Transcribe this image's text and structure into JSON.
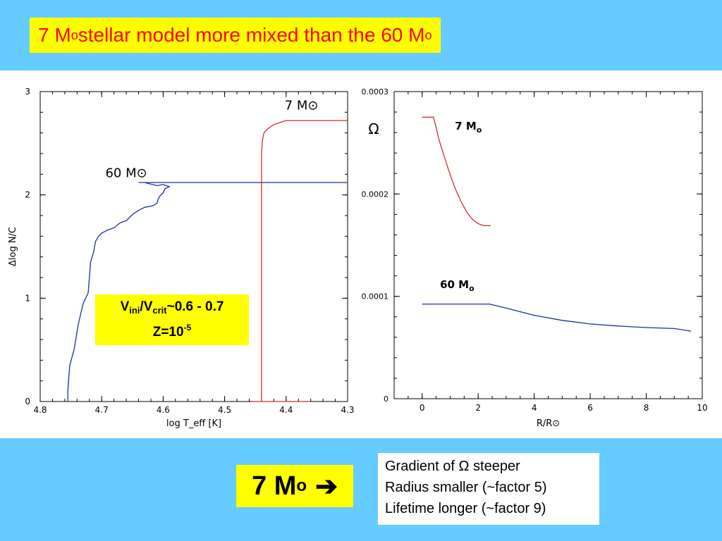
{
  "title": {
    "prefix": "7 M",
    "sub1": "o",
    "mid": " stellar model more mixed than the 60 M",
    "sub2": "o"
  },
  "velocity_box": {
    "line1_a": "V",
    "line1_sub1": "ini",
    "line1_b": "/V",
    "line1_sub2": "crit",
    "line1_c": "~0.6 - 0.7",
    "line2_a": "Z=10",
    "line2_sup": "-5"
  },
  "arrow_box": {
    "text": "7 M",
    "sub": "o",
    "arrow": "➔"
  },
  "notes": {
    "line1": "Gradient of Ω steeper",
    "line2": "Radius smaller (~factor 5)",
    "line3": "Lifetime longer (~factor 9)"
  },
  "colors": {
    "background": "#66ccff",
    "highlight": "#ffff00",
    "title_text": "#ff0000",
    "series_7": "#d32f2f",
    "series_60": "#1a2fa0"
  },
  "chart_data": [
    {
      "type": "line",
      "xlabel": "log T_eff [K]",
      "ylabel": "Δlog N/C",
      "xlim": [
        4.8,
        4.3
      ],
      "ylim": [
        0,
        3
      ],
      "xticks": [
        "4.8",
        "4.7",
        "4.6",
        "4.5",
        "4.4",
        "4.3"
      ],
      "yticks": [
        "0",
        "1",
        "2",
        "3"
      ],
      "series": [
        {
          "name": "60 M⊙",
          "color": "#1a2fa0",
          "x": [
            4.755,
            4.755,
            4.752,
            4.745,
            4.738,
            4.73,
            4.722,
            4.72,
            4.718,
            4.713,
            4.71,
            4.705,
            4.7,
            4.69,
            4.68,
            4.67,
            4.66,
            4.655,
            4.65,
            4.64,
            4.63,
            4.62,
            4.615,
            4.61,
            4.608,
            4.605,
            4.6,
            4.597,
            4.59,
            4.595,
            4.6,
            4.61,
            4.63,
            4.64,
            4.6,
            4.3
          ],
          "y": [
            0.0,
            0.1,
            0.35,
            0.5,
            0.75,
            0.95,
            1.05,
            1.2,
            1.35,
            1.45,
            1.55,
            1.6,
            1.63,
            1.66,
            1.68,
            1.73,
            1.75,
            1.78,
            1.81,
            1.85,
            1.88,
            1.89,
            1.9,
            1.92,
            1.96,
            1.99,
            2.02,
            2.06,
            2.08,
            2.09,
            2.1,
            2.09,
            2.12,
            2.12,
            2.12,
            2.12
          ]
        },
        {
          "name": "7 M⊙",
          "color": "#d32f2f",
          "x": [
            4.455,
            4.44,
            4.44,
            4.44,
            4.439,
            4.438,
            4.436,
            4.432,
            4.425,
            4.42,
            4.41,
            4.4,
            4.385,
            4.3
          ],
          "y": [
            0.0,
            0.0,
            2.1,
            2.4,
            2.5,
            2.55,
            2.6,
            2.63,
            2.66,
            2.68,
            2.7,
            2.72,
            2.72,
            2.72
          ]
        },
        {
          "name": "",
          "color": "#d32f2f",
          "x": [
            4.44,
            4.36
          ],
          "y": [
            0.0,
            0.0
          ]
        }
      ],
      "annotations": [
        {
          "text": "60 M⊙"
        },
        {
          "text": "7 M⊙"
        }
      ]
    },
    {
      "type": "line",
      "xlabel": "R/R⊙",
      "ylabel": "Ω",
      "xlim": [
        -1,
        10
      ],
      "ylim": [
        0,
        0.0003
      ],
      "xticks": [
        "0",
        "2",
        "4",
        "6",
        "8",
        "10"
      ],
      "xtick_values": [
        0,
        2,
        4,
        6,
        8,
        10
      ],
      "yticks": [
        "0",
        "0.0001",
        "0.0002",
        "0.0003"
      ],
      "ytick_values": [
        0,
        0.0001,
        0.0002,
        0.0003
      ],
      "series": [
        {
          "name": "7 Mₒ",
          "color": "#d32f2f",
          "x": [
            0.0,
            0.4,
            0.5,
            0.6,
            0.75,
            0.9,
            1.05,
            1.2,
            1.4,
            1.6,
            1.8,
            2.0,
            2.2,
            2.45
          ],
          "y": [
            0.000275,
            0.000275,
            0.000265,
            0.000253,
            0.00024,
            0.000227,
            0.000215,
            0.000204,
            0.000192,
            0.000182,
            0.000175,
            0.000171,
            0.000169,
            0.000169
          ]
        },
        {
          "name": "60 Mₒ",
          "color": "#1a2fa0",
          "x": [
            0.0,
            0.5,
            1.0,
            1.5,
            2.0,
            2.4,
            3.0,
            3.5,
            4.0,
            5.0,
            6.0,
            7.0,
            8.0,
            9.0,
            9.6
          ],
          "y": [
            9.25e-05,
            9.25e-05,
            9.25e-05,
            9.25e-05,
            9.25e-05,
            9.25e-05,
            8.85e-05,
            8.5e-05,
            8.15e-05,
            7.65e-05,
            7.3e-05,
            7.1e-05,
            6.95e-05,
            6.85e-05,
            6.6e-05
          ]
        }
      ],
      "annotations": [
        {
          "text": "7 M",
          "sub": "o"
        },
        {
          "text": "60 M",
          "sub": "o"
        }
      ]
    }
  ]
}
